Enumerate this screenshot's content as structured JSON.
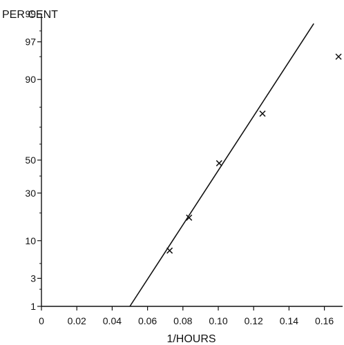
{
  "chart_data": {
    "type": "scatter",
    "title": "",
    "xlabel": "1/HOURS",
    "ylabel": "PER CENT",
    "x_ticks": [
      0,
      0.02,
      0.04,
      0.06,
      0.08,
      0.1,
      0.12,
      0.14,
      0.16
    ],
    "x_tick_labels": [
      "0",
      "0.02",
      "0.04",
      "0.06",
      "0.08",
      "0.10",
      "0.12",
      "0.14",
      "0.16"
    ],
    "y_ticks": [
      1,
      3,
      10,
      30,
      50,
      90,
      97,
      99
    ],
    "y_tick_labels": [
      "1",
      "3",
      "10",
      "30",
      "50",
      "90",
      "97",
      "99"
    ],
    "y_scale": "probability",
    "xlim": [
      0,
      0.168
    ],
    "ylim": [
      1,
      99
    ],
    "grid": false,
    "points": [
      {
        "x": 0.0725,
        "y": 7.5
      },
      {
        "x": 0.0835,
        "y": 18
      },
      {
        "x": 0.1005,
        "y": 48
      },
      {
        "x": 0.125,
        "y": 77
      },
      {
        "x": 0.168,
        "y": 95
      }
    ],
    "fit_line": {
      "x": [
        0.05,
        0.154
      ],
      "y": [
        1,
        98.5
      ]
    }
  }
}
